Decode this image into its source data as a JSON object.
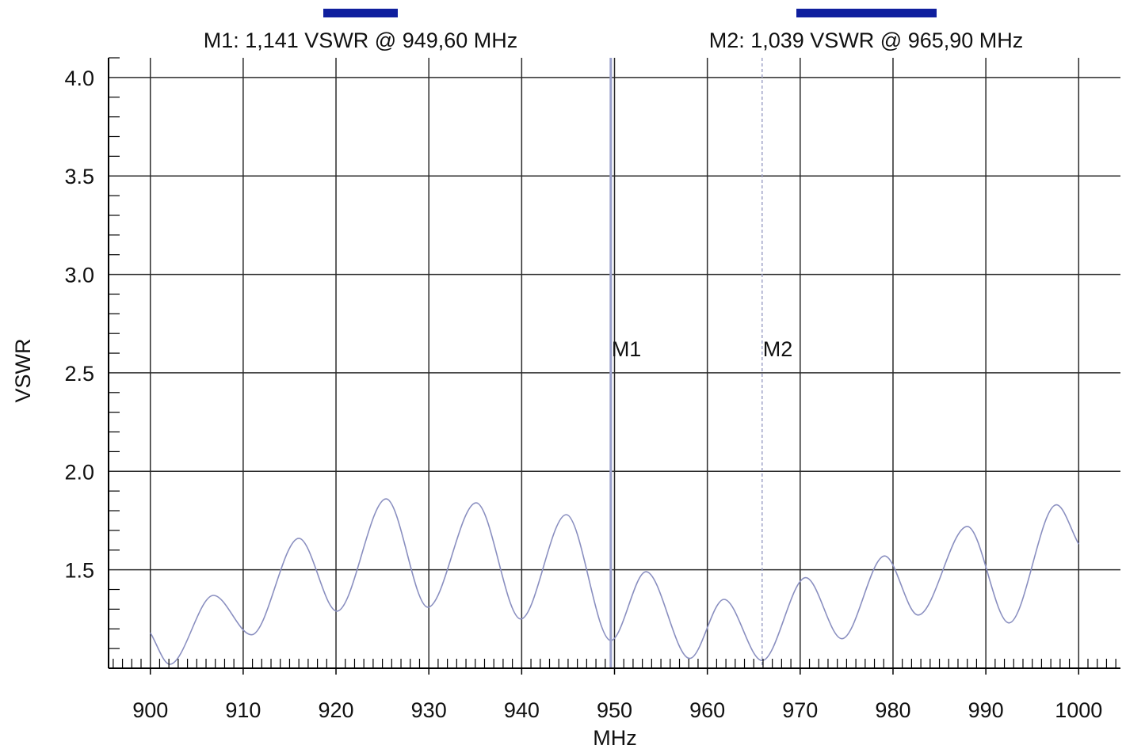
{
  "chart_data": {
    "type": "line",
    "xlabel": "MHz",
    "ylabel": "VSWR",
    "xlim": [
      895.5,
      1004.5
    ],
    "ylim": [
      1.0,
      4.1
    ],
    "x_ticks": [
      900,
      910,
      920,
      930,
      940,
      950,
      960,
      970,
      980,
      990,
      1000
    ],
    "x_tick_labels": [
      "900",
      "910",
      "920",
      "930",
      "940",
      "950",
      "960",
      "970",
      "980",
      "990",
      "1000"
    ],
    "y_ticks": [
      1.5,
      2.0,
      2.5,
      3.0,
      3.5,
      4.0
    ],
    "y_tick_labels": [
      "1.5",
      "2.0",
      "2.5",
      "3.0",
      "3.5",
      "4.0"
    ],
    "grid": true,
    "series": [
      {
        "color": "#8a8fc0",
        "x": [
          900,
          902.1,
          906.8,
          910.9,
          916.0,
          920.1,
          925.4,
          929.9,
          935.1,
          939.9,
          944.8,
          949.6,
          953.4,
          958.1,
          961.8,
          965.9,
          970.6,
          974.5,
          979.1,
          982.7,
          988.0,
          992.5,
          997.6,
          1000
        ],
        "y": [
          1.18,
          1.02,
          1.37,
          1.17,
          1.66,
          1.29,
          1.86,
          1.31,
          1.84,
          1.25,
          1.78,
          1.141,
          1.49,
          1.05,
          1.35,
          1.039,
          1.46,
          1.15,
          1.57,
          1.27,
          1.72,
          1.23,
          1.83,
          1.63
        ]
      }
    ],
    "markers": [
      {
        "name": "M1",
        "x": 949.6,
        "readout": "M1: 1,141 VSWR @ 949,60 MHz",
        "line_style": "solid",
        "color": "#9aa0cc",
        "bars": 1
      },
      {
        "name": "M2",
        "x": 965.9,
        "readout": "M2: 1,039 VSWR @ 965,90 MHz",
        "line_style": "dashed",
        "color": "#a0a4c8",
        "bars": 2
      }
    ],
    "colors": {
      "grid": "#2b2b2b",
      "axis": "#000000",
      "marker_bar": "#0f1f9e"
    }
  }
}
